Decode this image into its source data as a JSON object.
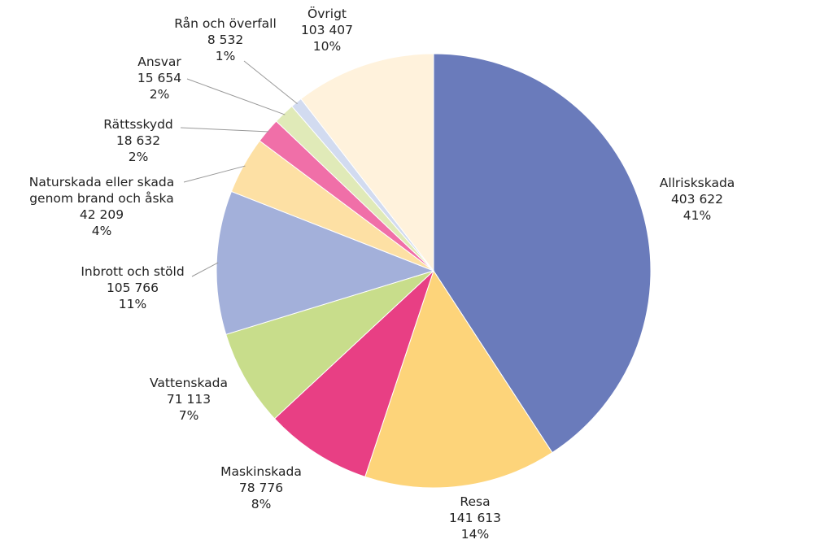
{
  "chart_data": {
    "type": "pie",
    "categories": [
      "Allriskskada",
      "Resa",
      "Maskinskada",
      "Vattenskada",
      "Inbrott och stöld",
      "Naturskada eller skada genom brand och åska",
      "Rättsskydd",
      "Ansvar",
      "Rån och överfall",
      "Övrigt"
    ],
    "values": [
      403622,
      141613,
      78776,
      71113,
      105766,
      42209,
      18632,
      15654,
      8532,
      103407
    ],
    "value_labels": [
      "403 622",
      "141 613",
      "78 776",
      "71 113",
      "105 766",
      "42 209",
      "18 632",
      "15 654",
      "8 532",
      "103 407"
    ],
    "share_labels": [
      "41%",
      "14%",
      "8%",
      "7%",
      "11%",
      "4%",
      "2%",
      "2%",
      "1%",
      "10%"
    ],
    "colors": [
      "#6a7bbb",
      "#fdd47a",
      "#e83f84",
      "#c8dd8b",
      "#a3b0da",
      "#fde0a4",
      "#f06fa8",
      "#e0eab8",
      "#d2dbf0",
      "#fff2dc"
    ]
  }
}
